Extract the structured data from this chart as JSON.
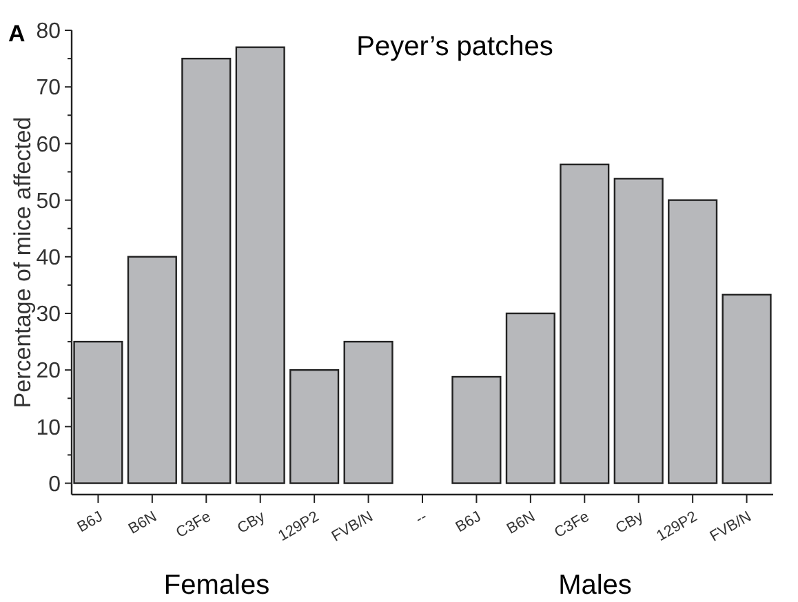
{
  "chart_data": {
    "type": "bar",
    "title": "Peyer’s patches",
    "ylabel": "Percentage of mice affected",
    "categories": [
      "B6J",
      "B6N",
      "C3Fe",
      "CBy",
      "129P2",
      "FVB/N",
      "--",
      "B6J",
      "B6N",
      "C3Fe",
      "CBy",
      "129P2",
      "FVB/N"
    ],
    "values": [
      25,
      40,
      75,
      77,
      20,
      25,
      null,
      18.8,
      30,
      56.3,
      53.8,
      50,
      33.3
    ],
    "color": "#b7b8bb",
    "ylim": [
      -2,
      80
    ],
    "yticks": [
      0,
      {
        "value": 5,
        "label": null
      },
      10,
      {
        "value": 15,
        "label": null
      },
      20,
      {
        "value": 25,
        "label": null
      },
      30,
      {
        "value": 35,
        "label": null
      },
      40,
      {
        "value": 45,
        "label": null
      },
      50,
      {
        "value": 55,
        "label": null
      },
      60,
      {
        "value": 65,
        "label": null
      },
      70,
      {
        "value": 75,
        "label": null
      },
      80
    ],
    "grid": false,
    "annotations": [
      "A",
      "Females",
      "Males"
    ]
  }
}
